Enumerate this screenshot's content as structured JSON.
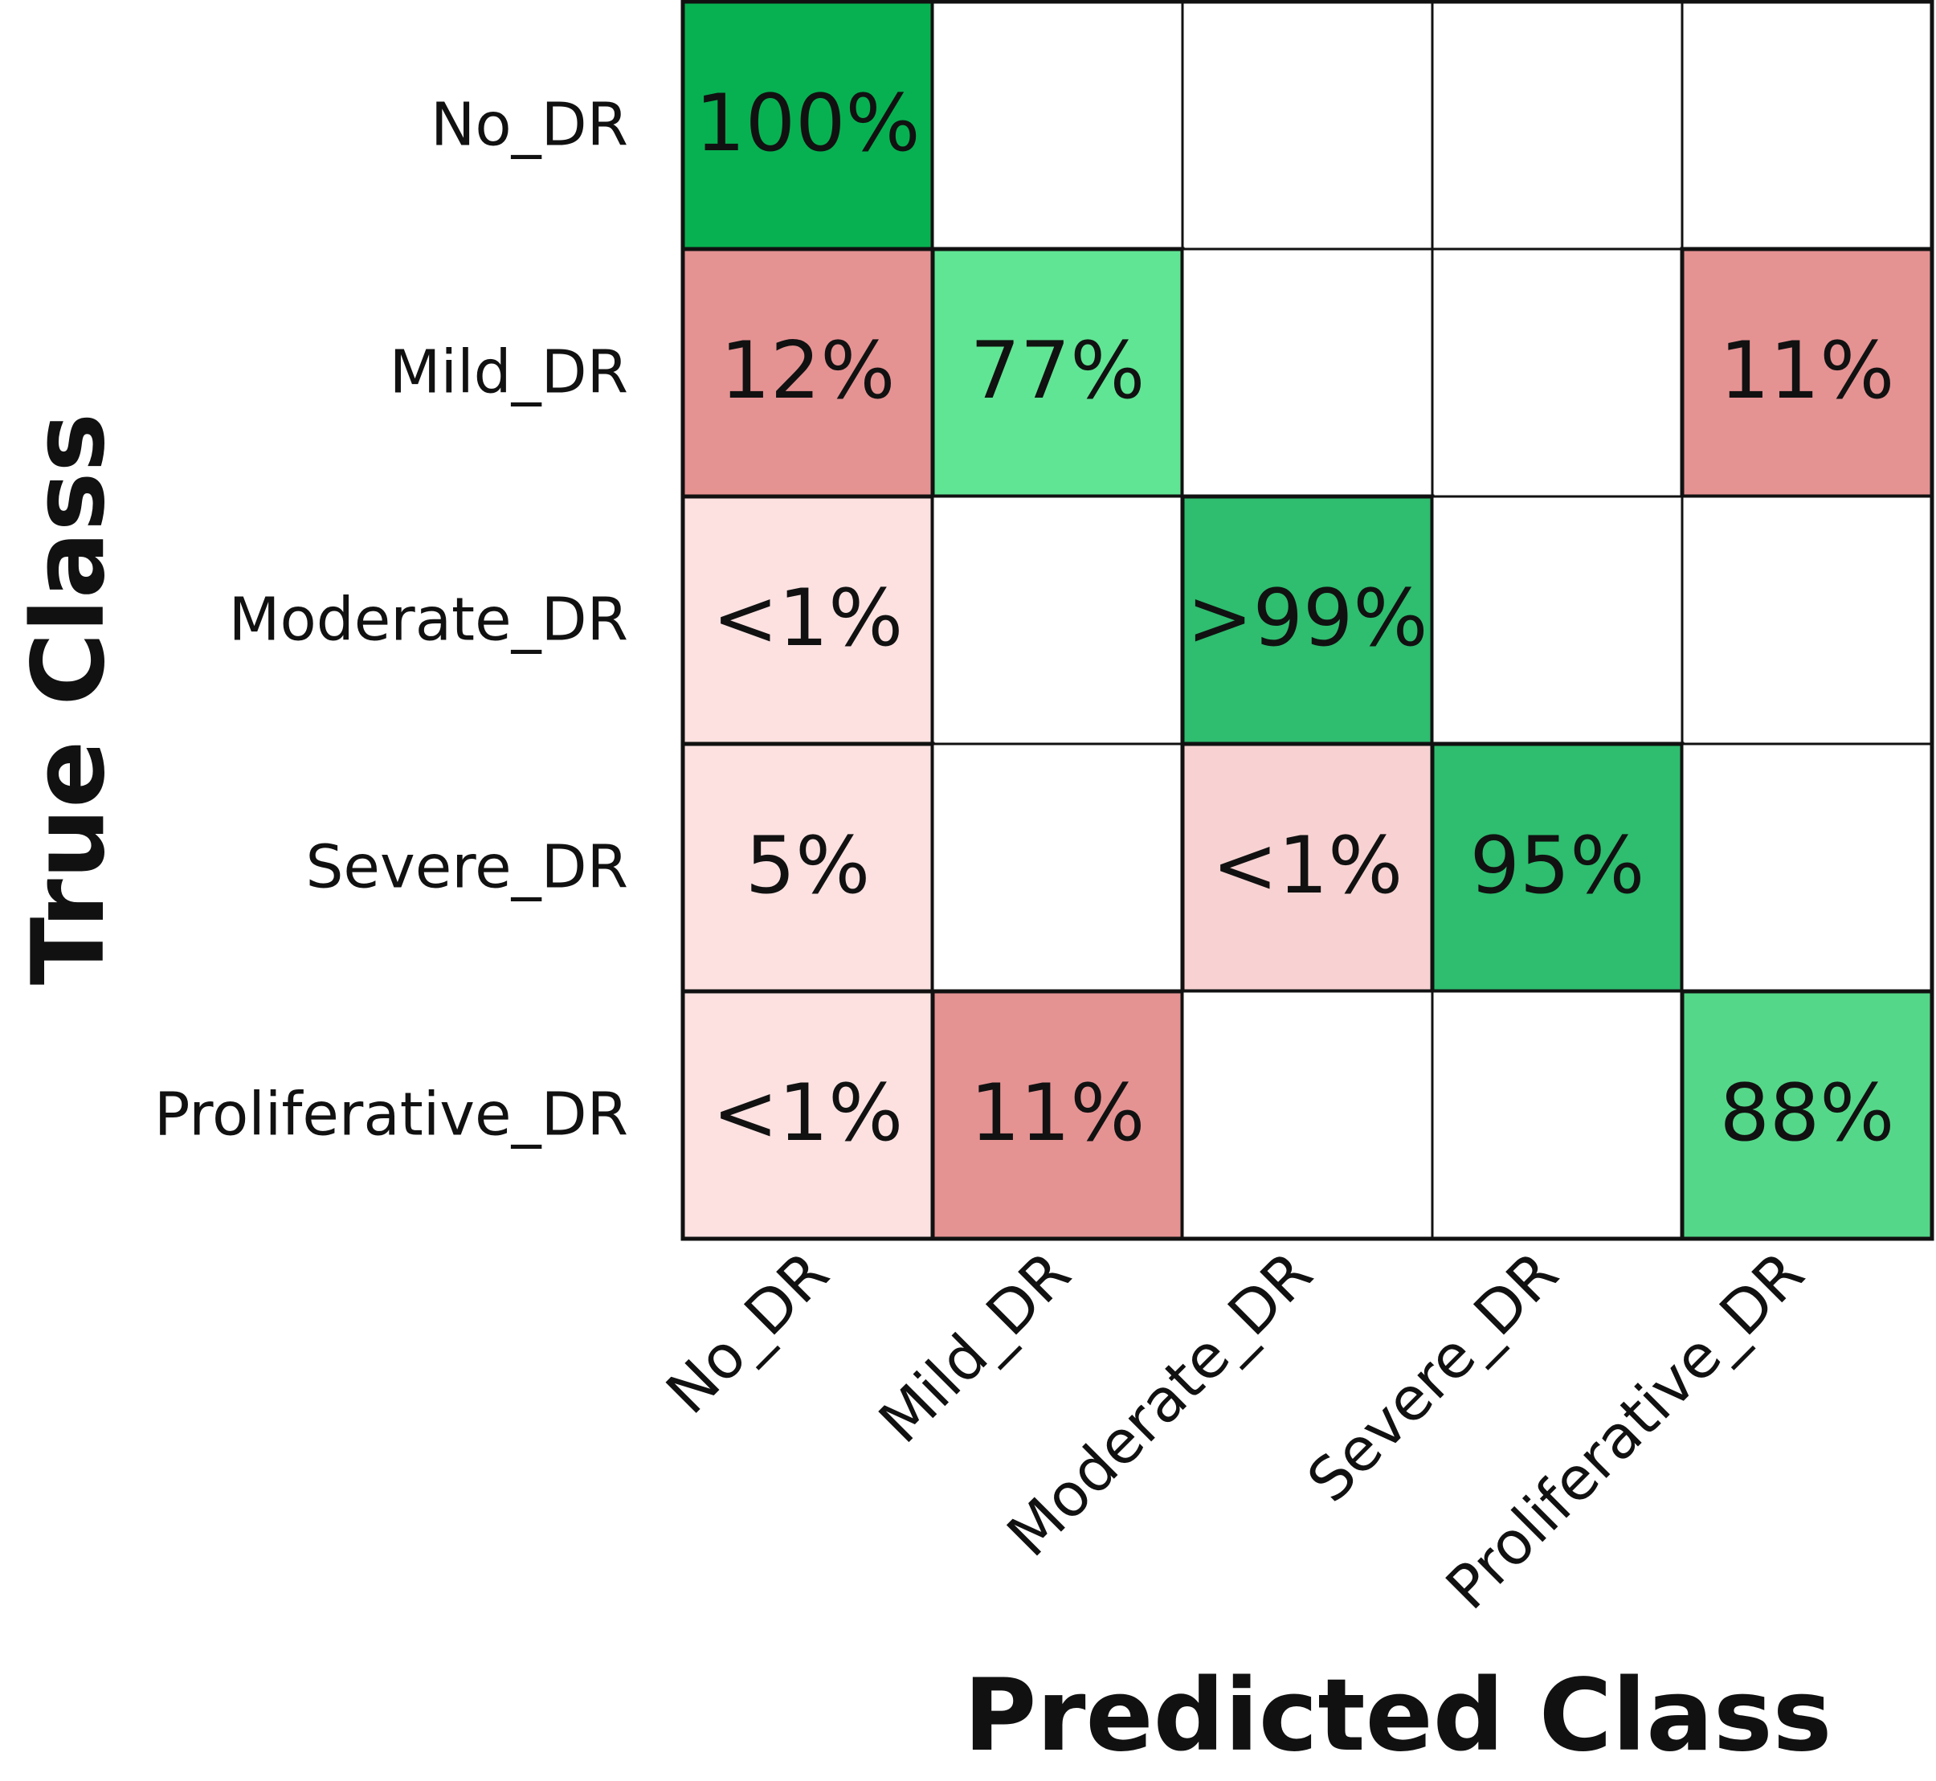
{
  "chart_data": {
    "type": "heatmap",
    "title": "",
    "xlabel": "Predicted Class",
    "ylabel": "True Class",
    "rows": [
      "No_DR",
      "Mild_DR",
      "Moderate_DR",
      "Severe_DR",
      "Proliferative_DR"
    ],
    "columns": [
      "No_DR",
      "Mild_DR",
      "Moderate_DR",
      "Severe_DR",
      "Proliferative_DR"
    ],
    "cells": [
      [
        "100%",
        "",
        "",
        "",
        ""
      ],
      [
        "12%",
        "77%",
        "",
        "",
        "11%"
      ],
      [
        "<1%",
        "",
        ">99%",
        "",
        ""
      ],
      [
        "5%",
        "",
        "<1%",
        "95%",
        ""
      ],
      [
        "<1%",
        "11%",
        "",
        "",
        "88%"
      ]
    ],
    "colors": [
      [
        "#07b151",
        "#ffffff",
        "#ffffff",
        "#ffffff",
        "#ffffff"
      ],
      [
        "#e59293",
        "#60e594",
        "#ffffff",
        "#ffffff",
        "#e59293"
      ],
      [
        "#fde1e1",
        "#ffffff",
        "#2fbd6f",
        "#ffffff",
        "#ffffff"
      ],
      [
        "#fde1e1",
        "#ffffff",
        "#f8d2d2",
        "#2fbd6f",
        "#ffffff"
      ],
      [
        "#fde1e1",
        "#e59293",
        "#ffffff",
        "#ffffff",
        "#55d789"
      ]
    ]
  }
}
